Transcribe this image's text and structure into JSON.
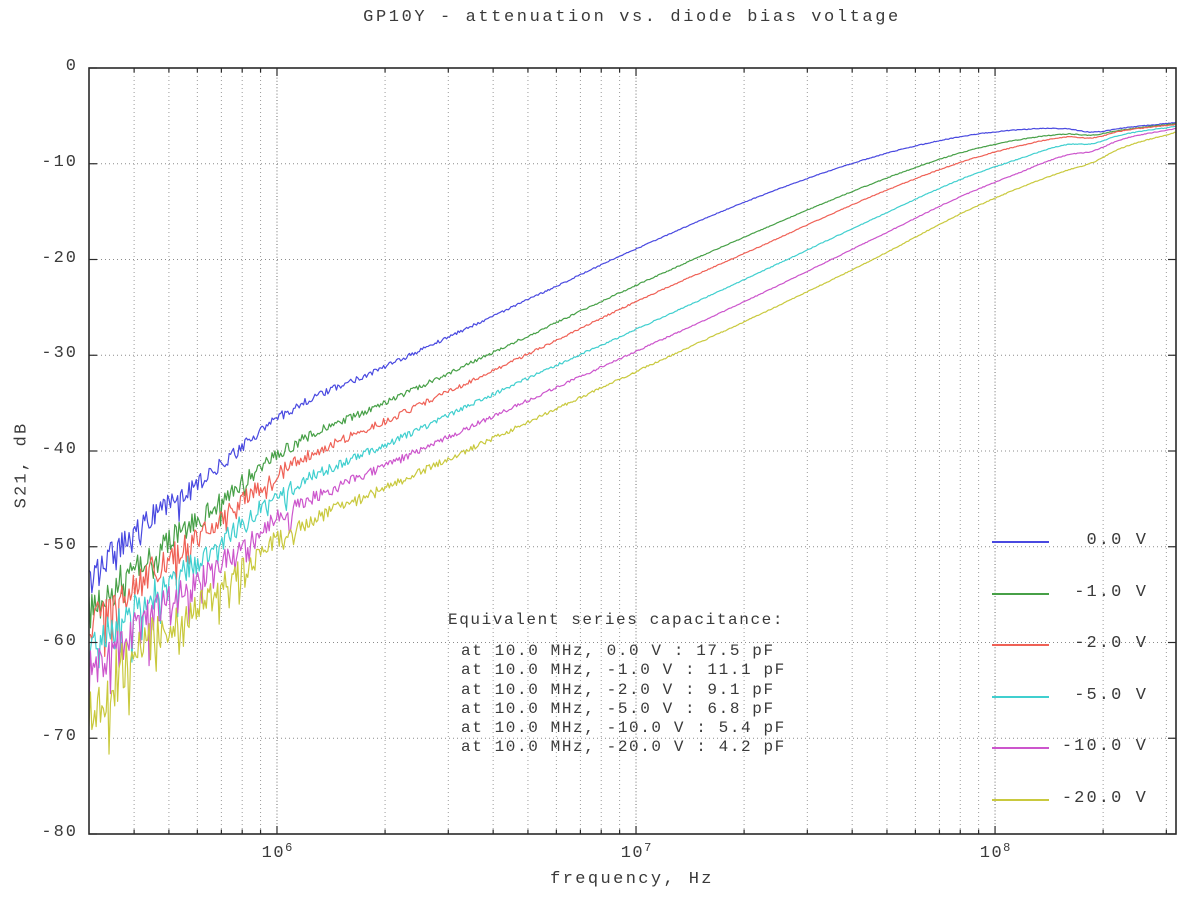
{
  "title": "GP10Y - attenuation vs. diode bias voltage",
  "xlabel": "frequency, Hz",
  "ylabel": "S21, dB",
  "axes": {
    "y_ticks": [
      "0",
      "-10",
      "-20",
      "-30",
      "-40",
      "-50",
      "-60",
      "-70",
      "-80"
    ],
    "y_tick_values": [
      0,
      -10,
      -20,
      -30,
      -40,
      -50,
      -60,
      -70,
      -80
    ],
    "x_decades": [
      6,
      7,
      8
    ],
    "x_tick_base": "10",
    "xlim_log10": [
      5.4764,
      8.504
    ],
    "ylim": [
      -80,
      0
    ]
  },
  "annotation": {
    "heading": "Equivalent series capacitance:",
    "lines": [
      "at 10.0 MHz, 0.0 V : 17.5 pF",
      "at 10.0 MHz, -1.0 V : 11.1 pF",
      "at 10.0 MHz, -2.0 V : 9.1 pF",
      "at 10.0 MHz, -5.0 V : 6.8 pF",
      "at 10.0 MHz, -10.0 V : 5.4 pF",
      "at 10.0 MHz, -20.0 V : 4.2 pF"
    ]
  },
  "legend": [
    {
      "label": "0.0 V",
      "color": "#4949e0"
    },
    {
      "label": "-1.0 V",
      "color": "#47a047"
    },
    {
      "label": "-2.0 V",
      "color": "#ef6156"
    },
    {
      "label": "-5.0 V",
      "color": "#40cfcf"
    },
    {
      "label": "-10.0 V",
      "color": "#cc55cc"
    },
    {
      "label": "-20.0 V",
      "color": "#c9c93e"
    }
  ],
  "colors": {
    "grid_minor": "#9b9b9b",
    "grid_major": "#6e6e6e",
    "grid_horizontal": "#8b8b8b",
    "border": "#2a2a2a",
    "text": "#3a3a3a"
  },
  "chart_data": {
    "type": "line",
    "x_scale": "log",
    "title": "GP10Y - attenuation vs. diode bias voltage",
    "xlabel": "frequency, Hz",
    "ylabel": "S21, dB",
    "xlim_hz": [
      300000,
      320000000
    ],
    "ylim": [
      -80,
      0
    ],
    "grid": "both axes, dotted, minor log gridlines shown",
    "legend_position": "inside right, no frame",
    "noise": "traces are noisy below ~2 MHz, up to ±3 dB with downward spikes at the left edge; smooth above ~5 MHz",
    "series": [
      {
        "name": "0.0 V",
        "color": "#4949e0",
        "esc_pF_at_10MHz": 17.5,
        "noise_factor": 0.75,
        "points_logf_db": [
          [
            5.476,
            -53.5
          ],
          [
            5.6,
            -48.5
          ],
          [
            5.8,
            -42.8
          ],
          [
            6.0,
            -36.6
          ],
          [
            6.33,
            -30.7
          ],
          [
            6.67,
            -24.7
          ],
          [
            7.0,
            -18.9
          ],
          [
            7.33,
            -13.6
          ],
          [
            7.67,
            -9.2
          ],
          [
            7.9,
            -7.2
          ],
          [
            8.05,
            -6.5
          ],
          [
            8.2,
            -6.35
          ],
          [
            8.27,
            -6.7
          ],
          [
            8.35,
            -6.3
          ],
          [
            8.504,
            -5.7
          ]
        ]
      },
      {
        "name": "-1.0 V",
        "color": "#47a047",
        "esc_pF_at_10MHz": 11.1,
        "noise_factor": 0.95,
        "points_logf_db": [
          [
            5.476,
            -57.0
          ],
          [
            5.6,
            -52.3
          ],
          [
            5.8,
            -46.6
          ],
          [
            6.0,
            -40.4
          ],
          [
            6.33,
            -34.5
          ],
          [
            6.67,
            -28.5
          ],
          [
            7.0,
            -22.7
          ],
          [
            7.33,
            -17.2
          ],
          [
            7.67,
            -11.9
          ],
          [
            7.9,
            -8.9
          ],
          [
            8.05,
            -7.6
          ],
          [
            8.2,
            -6.9
          ],
          [
            8.27,
            -7.0
          ],
          [
            8.35,
            -6.5
          ],
          [
            8.504,
            -5.8
          ]
        ]
      },
      {
        "name": "-2.0 V",
        "color": "#ef6156",
        "esc_pF_at_10MHz": 9.1,
        "noise_factor": 1.05,
        "points_logf_db": [
          [
            5.476,
            -59.0
          ],
          [
            5.6,
            -54.2
          ],
          [
            5.8,
            -48.5
          ],
          [
            6.0,
            -42.3
          ],
          [
            6.33,
            -36.4
          ],
          [
            6.67,
            -30.4
          ],
          [
            7.0,
            -24.4
          ],
          [
            7.33,
            -18.9
          ],
          [
            7.67,
            -13.2
          ],
          [
            7.9,
            -9.9
          ],
          [
            8.05,
            -8.3
          ],
          [
            8.2,
            -7.2
          ],
          [
            8.27,
            -7.3
          ],
          [
            8.35,
            -6.6
          ],
          [
            8.504,
            -5.9
          ]
        ]
      },
      {
        "name": "-5.0 V",
        "color": "#40cfcf",
        "esc_pF_at_10MHz": 6.8,
        "noise_factor": 1.15,
        "points_logf_db": [
          [
            5.476,
            -61.5
          ],
          [
            5.6,
            -56.6
          ],
          [
            5.8,
            -50.9
          ],
          [
            6.0,
            -44.7
          ],
          [
            6.33,
            -38.9
          ],
          [
            6.67,
            -32.9
          ],
          [
            7.0,
            -27.3
          ],
          [
            7.33,
            -21.6
          ],
          [
            7.67,
            -15.6
          ],
          [
            7.9,
            -11.7
          ],
          [
            8.05,
            -9.7
          ],
          [
            8.2,
            -8.0
          ],
          [
            8.27,
            -7.9
          ],
          [
            8.35,
            -7.0
          ],
          [
            8.504,
            -6.1
          ]
        ]
      },
      {
        "name": "-10.0 V",
        "color": "#cc55cc",
        "esc_pF_at_10MHz": 5.4,
        "noise_factor": 1.3,
        "points_logf_db": [
          [
            5.476,
            -64.0
          ],
          [
            5.6,
            -58.8
          ],
          [
            5.8,
            -53.2
          ],
          [
            6.0,
            -47.0
          ],
          [
            6.33,
            -41.1
          ],
          [
            6.67,
            -35.2
          ],
          [
            7.0,
            -29.6
          ],
          [
            7.33,
            -23.9
          ],
          [
            7.67,
            -17.7
          ],
          [
            7.9,
            -13.5
          ],
          [
            8.05,
            -11.2
          ],
          [
            8.2,
            -9.1
          ],
          [
            8.27,
            -8.7
          ],
          [
            8.35,
            -7.5
          ],
          [
            8.504,
            -6.3
          ]
        ]
      },
      {
        "name": "-20.0 V",
        "color": "#c9c93e",
        "esc_pF_at_10MHz": 4.2,
        "noise_factor": 1.45,
        "points_logf_db": [
          [
            5.476,
            -67.0
          ],
          [
            5.6,
            -61.3
          ],
          [
            5.8,
            -55.5
          ],
          [
            6.0,
            -49.3
          ],
          [
            6.33,
            -43.4
          ],
          [
            6.67,
            -37.5
          ],
          [
            7.0,
            -31.7
          ],
          [
            7.33,
            -26.0
          ],
          [
            7.67,
            -19.8
          ],
          [
            7.9,
            -15.3
          ],
          [
            8.05,
            -12.8
          ],
          [
            8.2,
            -10.7
          ],
          [
            8.27,
            -9.9
          ],
          [
            8.35,
            -8.4
          ],
          [
            8.504,
            -6.7
          ]
        ]
      }
    ]
  }
}
